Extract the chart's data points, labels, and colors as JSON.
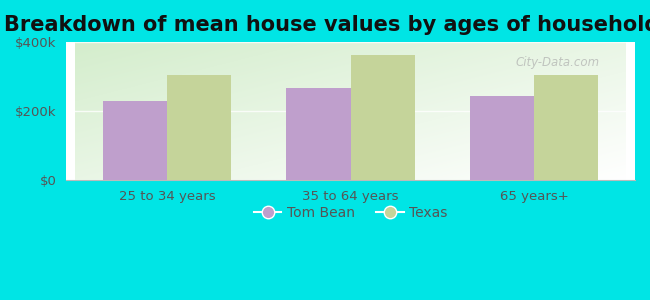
{
  "title": "Breakdown of mean house values by ages of householders",
  "categories": [
    "25 to 34 years",
    "35 to 64 years",
    "65 years+"
  ],
  "tom_bean_values": [
    230000,
    268000,
    243000
  ],
  "texas_values": [
    305000,
    362000,
    305000
  ],
  "tom_bean_color": "#bf9fcc",
  "texas_color": "#c5d49a",
  "background_color": "#00e5e5",
  "ylim": [
    0,
    400000
  ],
  "yticks": [
    0,
    200000,
    400000
  ],
  "ytick_labels": [
    "$0",
    "$200k",
    "$400k"
  ],
  "legend_tom_bean": "Tom Bean",
  "legend_texas": "Texas",
  "watermark": "City-Data.com",
  "bar_width": 0.35,
  "title_fontsize": 15,
  "tick_fontsize": 9.5,
  "legend_fontsize": 10
}
